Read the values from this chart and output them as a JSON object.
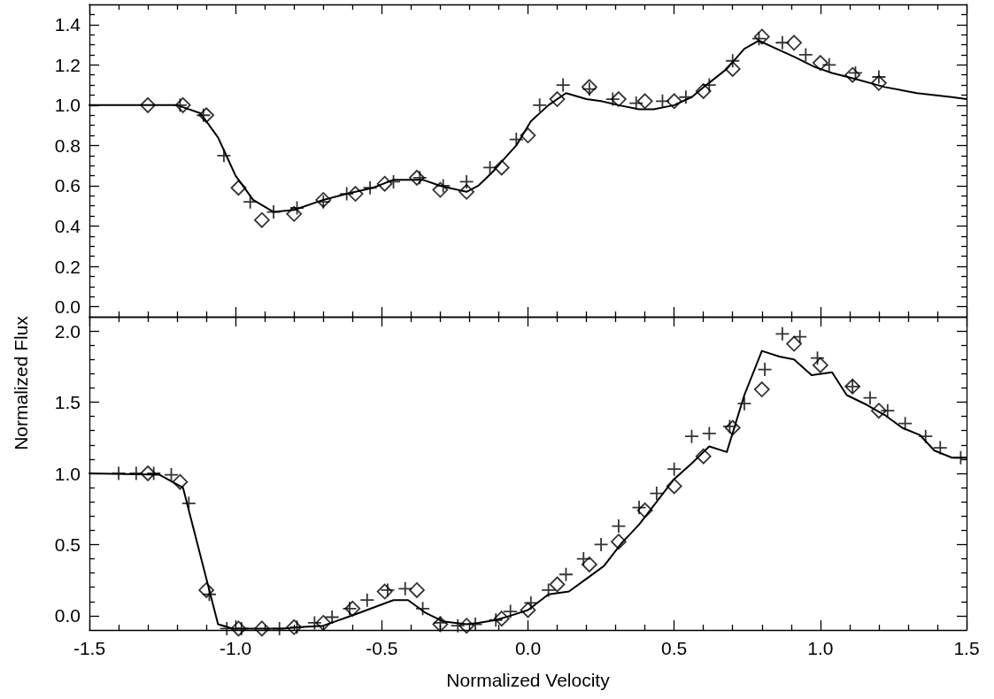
{
  "chart_data": [
    {
      "type": "line",
      "tick_labels": "y",
      "xlim": [
        -1.5,
        1.5
      ],
      "ylim": [
        -0.05,
        1.5
      ],
      "xticks": [
        -1.5,
        {
          "value": -1.4,
          "label": null
        },
        {
          "value": -1.3,
          "label": null
        },
        {
          "value": -1.2,
          "label": null
        },
        {
          "value": -1.1,
          "label": null
        },
        -1,
        {
          "value": -0.9,
          "label": null
        },
        {
          "value": -0.8,
          "label": null
        },
        {
          "value": -0.7,
          "label": null
        },
        {
          "value": -0.6,
          "label": null
        },
        -0.5,
        {
          "value": -0.4,
          "label": null
        },
        {
          "value": -0.3,
          "label": null
        },
        {
          "value": -0.2,
          "label": null
        },
        {
          "value": -0.1,
          "label": null
        },
        0,
        {
          "value": 0.1,
          "label": null
        },
        {
          "value": 0.2,
          "label": null
        },
        {
          "value": 0.3,
          "label": null
        },
        {
          "value": 0.4,
          "label": null
        },
        0.5,
        {
          "value": 0.6,
          "label": null
        },
        {
          "value": 0.7,
          "label": null
        },
        {
          "value": 0.8,
          "label": null
        },
        {
          "value": 0.9,
          "label": null
        },
        1,
        {
          "value": 1.1,
          "label": null
        },
        {
          "value": 1.2,
          "label": null
        },
        {
          "value": 1.3,
          "label": null
        },
        {
          "value": 1.4,
          "label": null
        },
        1.5
      ],
      "yticks": [
        {
          "value": 0,
          "label": "0.0"
        },
        {
          "value": 0.05,
          "label": null
        },
        {
          "value": 0.1,
          "label": null
        },
        {
          "value": 0.15,
          "label": null
        },
        0.2,
        {
          "value": 0.25,
          "label": null
        },
        {
          "value": 0.3,
          "label": null
        },
        {
          "value": 0.35,
          "label": null
        },
        0.4,
        {
          "value": 0.45,
          "label": null
        },
        {
          "value": 0.5,
          "label": null
        },
        {
          "value": 0.55,
          "label": null
        },
        0.6,
        {
          "value": 0.65,
          "label": null
        },
        {
          "value": 0.7,
          "label": null
        },
        {
          "value": 0.75,
          "label": null
        },
        0.8,
        {
          "value": 0.85,
          "label": null
        },
        {
          "value": 0.9,
          "label": null
        },
        {
          "value": 0.95,
          "label": null
        },
        {
          "value": 1.0,
          "label": "1.0"
        },
        {
          "value": 1.05,
          "label": null
        },
        {
          "value": 1.1,
          "label": null
        },
        {
          "value": 1.15,
          "label": null
        },
        1.2,
        {
          "value": 1.25,
          "label": null
        },
        {
          "value": 1.3,
          "label": null
        },
        {
          "value": 1.35,
          "label": null
        },
        1.4,
        {
          "value": 1.45,
          "label": null
        }
      ],
      "series": [
        {
          "marker": "none",
          "line_style": "solid",
          "color": "#000000",
          "x": [
            -1.5,
            -1.3,
            -1.2,
            -1.12,
            -1.06,
            -1.0,
            -0.94,
            -0.87,
            -0.8,
            -0.7,
            -0.62,
            -0.53,
            -0.46,
            -0.36,
            -0.3,
            -0.21,
            -0.17,
            -0.12,
            -0.09,
            -0.04,
            0.01,
            0.07,
            0.13,
            0.2,
            0.25,
            0.31,
            0.38,
            0.43,
            0.5,
            0.56,
            0.61,
            0.68,
            0.74,
            0.79,
            0.85,
            0.91,
            0.98,
            1.04,
            1.12,
            1.22,
            1.33,
            1.45,
            1.5
          ],
          "values": [
            1.0,
            1.0,
            1.0,
            0.96,
            0.84,
            0.65,
            0.53,
            0.47,
            0.48,
            0.53,
            0.56,
            0.59,
            0.63,
            0.63,
            0.6,
            0.57,
            0.6,
            0.67,
            0.72,
            0.8,
            0.92,
            1.0,
            1.06,
            1.03,
            1.02,
            1.0,
            0.98,
            0.98,
            1.0,
            1.04,
            1.1,
            1.18,
            1.28,
            1.32,
            1.28,
            1.24,
            1.19,
            1.16,
            1.13,
            1.09,
            1.06,
            1.04,
            1.03
          ]
        },
        {
          "type": "scatter",
          "marker": "diamond",
          "color": "#000000",
          "x": [
            -1.3,
            -1.18,
            -1.1,
            -0.99,
            -0.91,
            -0.8,
            -0.7,
            -0.59,
            -0.49,
            -0.38,
            -0.3,
            -0.21,
            -0.09,
            0.0,
            0.1,
            0.21,
            0.31,
            0.4,
            0.5,
            0.6,
            0.7,
            0.8,
            0.91,
            1.0,
            1.11,
            1.2
          ],
          "values": [
            1.0,
            1.0,
            0.95,
            0.59,
            0.43,
            0.46,
            0.53,
            0.56,
            0.61,
            0.64,
            0.58,
            0.57,
            0.69,
            0.85,
            1.03,
            1.09,
            1.03,
            1.02,
            1.02,
            1.07,
            1.18,
            1.34,
            1.31,
            1.21,
            1.15,
            1.11
          ]
        },
        {
          "type": "scatter",
          "marker": "cross",
          "color": "#000000",
          "x": [
            -1.19,
            -1.11,
            -1.04,
            -0.95,
            -0.87,
            -0.79,
            -0.7,
            -0.62,
            -0.54,
            -0.46,
            -0.37,
            -0.29,
            -0.21,
            -0.13,
            -0.04,
            0.04,
            0.12,
            0.21,
            0.29,
            0.37,
            0.46,
            0.54,
            0.62,
            0.7,
            0.79,
            0.87,
            0.95,
            1.03,
            1.12,
            1.2
          ],
          "values": [
            1.0,
            0.95,
            0.75,
            0.52,
            0.47,
            0.49,
            0.52,
            0.56,
            0.59,
            0.62,
            0.64,
            0.6,
            0.62,
            0.69,
            0.83,
            1.0,
            1.1,
            1.08,
            1.03,
            1.01,
            1.02,
            1.04,
            1.1,
            1.22,
            1.33,
            1.31,
            1.25,
            1.2,
            1.16,
            1.14
          ]
        }
      ]
    },
    {
      "type": "line",
      "xlabel": "Normalized Velocity",
      "ylabel": "Normalized Flux",
      "xlim": [
        -1.5,
        1.5
      ],
      "ylim": [
        -0.1,
        2.1
      ],
      "xticks": [
        -1.5,
        {
          "value": -1.4,
          "label": null
        },
        {
          "value": -1.3,
          "label": null
        },
        {
          "value": -1.2,
          "label": null
        },
        {
          "value": -1.1,
          "label": null
        },
        {
          "value": -1.0,
          "label": "-1.0"
        },
        {
          "value": -0.9,
          "label": null
        },
        {
          "value": -0.8,
          "label": null
        },
        {
          "value": -0.7,
          "label": null
        },
        {
          "value": -0.6,
          "label": null
        },
        -0.5,
        {
          "value": -0.4,
          "label": null
        },
        {
          "value": -0.3,
          "label": null
        },
        {
          "value": -0.2,
          "label": null
        },
        {
          "value": -0.1,
          "label": null
        },
        {
          "value": 0,
          "label": "0.0"
        },
        {
          "value": 0.1,
          "label": null
        },
        {
          "value": 0.2,
          "label": null
        },
        {
          "value": 0.3,
          "label": null
        },
        {
          "value": 0.4,
          "label": null
        },
        0.5,
        {
          "value": 0.6,
          "label": null
        },
        {
          "value": 0.7,
          "label": null
        },
        {
          "value": 0.8,
          "label": null
        },
        {
          "value": 0.9,
          "label": null
        },
        {
          "value": 1.0,
          "label": "1.0"
        },
        {
          "value": 1.1,
          "label": null
        },
        {
          "value": 1.2,
          "label": null
        },
        {
          "value": 1.3,
          "label": null
        },
        {
          "value": 1.4,
          "label": null
        },
        1.5
      ],
      "yticks": [
        {
          "value": 0,
          "label": "0.0"
        },
        {
          "value": 0.1,
          "label": null
        },
        {
          "value": 0.2,
          "label": null
        },
        {
          "value": 0.3,
          "label": null
        },
        {
          "value": 0.4,
          "label": null
        },
        0.5,
        {
          "value": 0.6,
          "label": null
        },
        {
          "value": 0.7,
          "label": null
        },
        {
          "value": 0.8,
          "label": null
        },
        {
          "value": 0.9,
          "label": null
        },
        {
          "value": 1.0,
          "label": "1.0"
        },
        {
          "value": 1.1,
          "label": null
        },
        {
          "value": 1.2,
          "label": null
        },
        {
          "value": 1.3,
          "label": null
        },
        {
          "value": 1.4,
          "label": null
        },
        1.5,
        {
          "value": 1.6,
          "label": null
        },
        {
          "value": 1.7,
          "label": null
        },
        {
          "value": 1.8,
          "label": null
        },
        {
          "value": 1.9,
          "label": null
        },
        {
          "value": 2.0,
          "label": "2.0"
        }
      ],
      "series": [
        {
          "marker": "none",
          "line_style": "solid",
          "color": "#000000",
          "x": [
            -1.5,
            -1.26,
            -1.18,
            -1.06,
            -1.01,
            -0.95,
            -0.84,
            -0.78,
            -0.7,
            -0.59,
            -0.46,
            -0.41,
            -0.35,
            -0.29,
            -0.21,
            -0.17,
            -0.11,
            -0.06,
            0.0,
            0.07,
            0.14,
            0.2,
            0.26,
            0.32,
            0.38,
            0.44,
            0.5,
            0.56,
            0.62,
            0.68,
            0.74,
            0.8,
            0.86,
            0.91,
            0.97,
            1.04,
            1.09,
            1.16,
            1.22,
            1.28,
            1.34,
            1.39,
            1.45,
            1.5
          ],
          "values": [
            1.0,
            0.99,
            0.9,
            -0.06,
            -0.09,
            -0.09,
            -0.09,
            -0.08,
            -0.07,
            0.01,
            0.11,
            0.11,
            0.02,
            -0.04,
            -0.06,
            -0.05,
            -0.03,
            0.0,
            0.04,
            0.15,
            0.17,
            0.26,
            0.35,
            0.51,
            0.64,
            0.8,
            0.96,
            1.07,
            1.19,
            1.15,
            1.55,
            1.86,
            1.82,
            1.8,
            1.69,
            1.71,
            1.55,
            1.48,
            1.41,
            1.32,
            1.27,
            1.16,
            1.11,
            1.11
          ]
        },
        {
          "type": "scatter",
          "marker": "diamond",
          "color": "#000000",
          "x": [
            -1.3,
            -1.19,
            -1.1,
            -0.99,
            -0.91,
            -0.8,
            -0.7,
            -0.6,
            -0.49,
            -0.38,
            -0.3,
            -0.21,
            -0.09,
            0.0,
            0.1,
            0.21,
            0.31,
            0.4,
            0.5,
            0.6,
            0.7,
            0.8,
            0.91,
            1.0,
            1.11,
            1.2
          ],
          "values": [
            1.0,
            0.94,
            0.18,
            -0.09,
            -0.09,
            -0.08,
            -0.05,
            0.05,
            0.17,
            0.18,
            -0.06,
            -0.07,
            -0.02,
            0.04,
            0.22,
            0.36,
            0.52,
            0.74,
            0.91,
            1.12,
            1.32,
            1.59,
            1.91,
            1.76,
            1.61,
            1.44
          ]
        },
        {
          "type": "scatter",
          "marker": "cross",
          "color": "#000000",
          "x": [
            -1.4,
            -1.34,
            -1.28,
            -1.22,
            -1.16,
            -1.09,
            -1.03,
            -0.98,
            -0.85,
            -0.79,
            -0.73,
            -0.67,
            -0.61,
            -0.55,
            -0.48,
            -0.42,
            -0.36,
            -0.3,
            -0.24,
            -0.18,
            -0.11,
            -0.06,
            0.01,
            0.07,
            0.13,
            0.19,
            0.25,
            0.31,
            0.38,
            0.44,
            0.5,
            0.56,
            0.62,
            0.69,
            0.74,
            0.81,
            0.87,
            0.93,
            0.99,
            1.11,
            1.17,
            1.23,
            1.29,
            1.36,
            1.41,
            1.48
          ],
          "values": [
            1.0,
            1.0,
            1.0,
            0.99,
            0.79,
            0.15,
            -0.09,
            -0.09,
            -0.09,
            -0.08,
            -0.05,
            -0.01,
            0.05,
            0.11,
            0.18,
            0.19,
            0.05,
            -0.05,
            -0.07,
            -0.06,
            -0.03,
            0.03,
            0.09,
            0.18,
            0.29,
            0.4,
            0.5,
            0.63,
            0.76,
            0.86,
            1.03,
            1.26,
            1.28,
            1.33,
            1.49,
            1.73,
            1.98,
            1.96,
            1.81,
            1.61,
            1.53,
            1.44,
            1.35,
            1.26,
            1.18,
            1.11
          ]
        }
      ]
    }
  ]
}
